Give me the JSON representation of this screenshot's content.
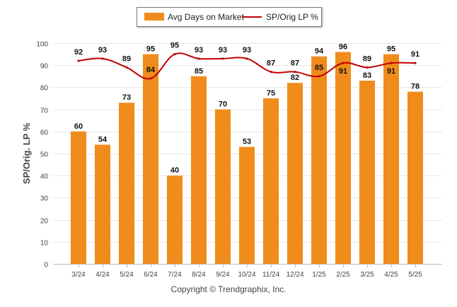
{
  "chart_data": {
    "type": "bar",
    "categories": [
      "3/24",
      "4/24",
      "5/24",
      "6/24",
      "7/24",
      "8/24",
      "9/24",
      "10/24",
      "11/24",
      "12/24",
      "1/25",
      "2/25",
      "3/25",
      "4/25",
      "5/25"
    ],
    "series": [
      {
        "name": "Avg Days on Market",
        "type": "bar",
        "values": [
          60,
          54,
          73,
          95,
          40,
          85,
          70,
          53,
          75,
          82,
          94,
          96,
          83,
          95,
          78
        ]
      },
      {
        "name": "SP/Orig LP %",
        "type": "line",
        "values": [
          92,
          93,
          89,
          84,
          95,
          93,
          93,
          93,
          87,
          87,
          85,
          91,
          89,
          91,
          91
        ]
      }
    ],
    "ylabel": "SP/Orig. LP %",
    "ylim": [
      0,
      100
    ],
    "yticks": [
      0,
      10,
      20,
      30,
      40,
      50,
      60,
      70,
      80,
      90,
      100
    ],
    "grid": true,
    "legend_position": "top-center",
    "colors": {
      "bar": "#f08c1c",
      "line": "#c00000"
    }
  },
  "footer": {
    "copyright": "Copyright © Trendgraphix, Inc."
  }
}
